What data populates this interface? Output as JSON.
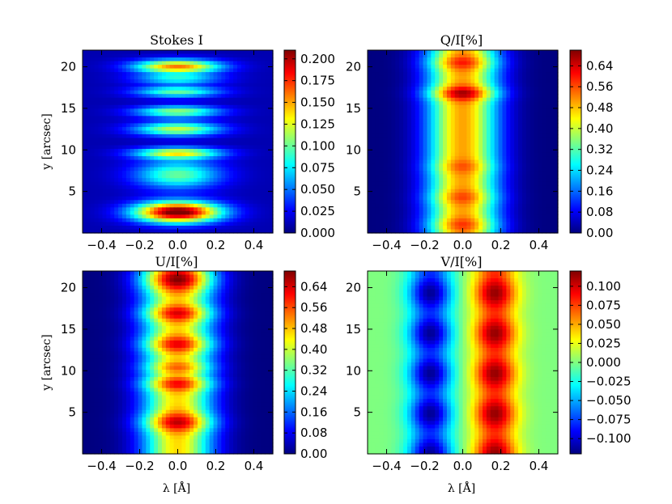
{
  "chart_data": [
    {
      "type": "heatmap",
      "title": "Stokes I",
      "xlabel": "",
      "ylabel": "y [arcsec]",
      "x_ticks": [
        "−0.4",
        "−0.2",
        "0.0",
        "0.2",
        "0.4"
      ],
      "x_tick_values": [
        -0.4,
        -0.2,
        0.0,
        0.2,
        0.4
      ],
      "y_ticks": [
        "5",
        "10",
        "15",
        "20"
      ],
      "y_tick_values": [
        5,
        10,
        15,
        20
      ],
      "xlim": [
        -0.5,
        0.5
      ],
      "ylim": [
        0,
        22
      ],
      "colorbar_ticks": [
        "0.000",
        "0.025",
        "0.050",
        "0.075",
        "0.100",
        "0.125",
        "0.150",
        "0.175",
        "0.200"
      ],
      "colorbar_range": [
        0,
        0.21
      ],
      "line_width": 0.16,
      "background": 0.01,
      "bands": [
        {
          "y": 2.5,
          "peak": 0.21,
          "dy": 0.9
        },
        {
          "y": 7.0,
          "peak": 0.09,
          "dy": 1.2
        },
        {
          "y": 9.6,
          "peak": 0.12,
          "dy": 0.5
        },
        {
          "y": 12.5,
          "peak": 0.11,
          "dy": 0.6
        },
        {
          "y": 14.6,
          "peak": 0.1,
          "dy": 0.5
        },
        {
          "y": 17.0,
          "peak": 0.09,
          "dy": 0.5
        },
        {
          "y": 18.5,
          "peak": 0.07,
          "dy": 0.4
        },
        {
          "y": 20.0,
          "peak": 0.15,
          "dy": 0.6
        }
      ]
    },
    {
      "type": "heatmap",
      "title": "Q/I[%]",
      "xlabel": "",
      "ylabel": "",
      "x_ticks": [
        "−0.4",
        "−0.2",
        "0.0",
        "0.2",
        "0.4"
      ],
      "x_tick_values": [
        -0.4,
        -0.2,
        0.0,
        0.2,
        0.4
      ],
      "y_ticks": [
        "5",
        "10",
        "15",
        "20"
      ],
      "y_tick_values": [
        5,
        10,
        15,
        20
      ],
      "xlim": [
        -0.5,
        0.5
      ],
      "ylim": [
        0,
        22
      ],
      "colorbar_ticks": [
        "0.00",
        "0.08",
        "0.16",
        "0.24",
        "0.32",
        "0.40",
        "0.48",
        "0.56",
        "0.64"
      ],
      "colorbar_range": [
        0,
        0.7
      ],
      "profile": "core",
      "center_value": 0.5,
      "bands": [
        {
          "y": 1.0,
          "peak": 0.58,
          "dy": 0.6
        },
        {
          "y": 4.3,
          "peak": 0.57,
          "dy": 0.6
        },
        {
          "y": 8.0,
          "peak": 0.56,
          "dy": 0.6
        },
        {
          "y": 16.8,
          "peak": 0.68,
          "dy": 0.6
        },
        {
          "y": 20.5,
          "peak": 0.6,
          "dy": 0.6
        }
      ]
    },
    {
      "type": "heatmap",
      "title": "U/I[%]",
      "xlabel": "λ [Å]",
      "ylabel": "y [arcsec]",
      "x_ticks": [
        "−0.4",
        "−0.2",
        "0.0",
        "0.2",
        "0.4"
      ],
      "x_tick_values": [
        -0.4,
        -0.2,
        0.0,
        0.2,
        0.4
      ],
      "y_ticks": [
        "5",
        "10",
        "15",
        "20"
      ],
      "y_tick_values": [
        5,
        10,
        15,
        20
      ],
      "xlim": [
        -0.5,
        0.5
      ],
      "ylim": [
        0,
        22
      ],
      "colorbar_ticks": [
        "0.00",
        "0.08",
        "0.16",
        "0.24",
        "0.32",
        "0.40",
        "0.48",
        "0.56",
        "0.64"
      ],
      "colorbar_range": [
        0,
        0.7
      ],
      "profile": "core",
      "center_value": 0.46,
      "bands": [
        {
          "y": 3.8,
          "peak": 0.66,
          "dy": 0.8
        },
        {
          "y": 8.4,
          "peak": 0.62,
          "dy": 0.6
        },
        {
          "y": 10.4,
          "peak": 0.55,
          "dy": 0.5
        },
        {
          "y": 13.2,
          "peak": 0.63,
          "dy": 0.7
        },
        {
          "y": 16.9,
          "peak": 0.64,
          "dy": 0.7
        },
        {
          "y": 21.0,
          "peak": 0.7,
          "dy": 1.0
        }
      ]
    },
    {
      "type": "heatmap",
      "title": "V/I[%]",
      "xlabel": "λ [Å]",
      "ylabel": "",
      "x_ticks": [
        "−0.4",
        "−0.2",
        "0.0",
        "0.2",
        "0.4"
      ],
      "x_tick_values": [
        -0.4,
        -0.2,
        0.0,
        0.2,
        0.4
      ],
      "y_ticks": [
        "5",
        "10",
        "15",
        "20"
      ],
      "y_tick_values": [
        5,
        10,
        15,
        20
      ],
      "xlim": [
        -0.5,
        0.5
      ],
      "ylim": [
        0,
        22
      ],
      "colorbar_ticks": [
        "0.100",
        "0.075",
        "0.050",
        "0.025",
        "0.000",
        "−0.025",
        "−0.050",
        "−0.075",
        "−0.100"
      ],
      "colorbar_tick_values": [
        0.1,
        0.075,
        0.05,
        0.025,
        0.0,
        -0.025,
        -0.05,
        -0.075,
        -0.1
      ],
      "colorbar_range": [
        -0.12,
        0.12
      ],
      "profile": "antisymmetric",
      "peak": 0.115,
      "lobe_center": 0.17
    }
  ]
}
